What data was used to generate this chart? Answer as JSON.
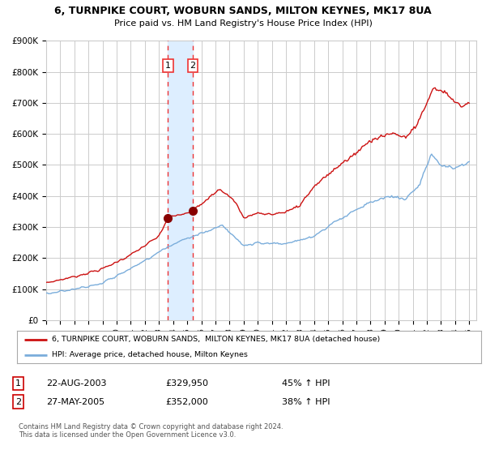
{
  "title": "6, TURNPIKE COURT, WOBURN SANDS, MILTON KEYNES, MK17 8UA",
  "subtitle": "Price paid vs. HM Land Registry's House Price Index (HPI)",
  "y_tick_labels": [
    "£0",
    "£100K",
    "£200K",
    "£300K",
    "£400K",
    "£500K",
    "£600K",
    "£700K",
    "£800K",
    "£900K"
  ],
  "y_ticks": [
    0,
    100000,
    200000,
    300000,
    400000,
    500000,
    600000,
    700000,
    800000,
    900000
  ],
  "hpi_color": "#7aaddb",
  "price_color": "#cc1111",
  "marker_color": "#880000",
  "vline_color": "#ee3333",
  "shade_color": "#ddeeff",
  "grid_color": "#cccccc",
  "sale1_year": 2003.64,
  "sale1_price": 329950,
  "sale2_year": 2005.4,
  "sale2_price": 352000,
  "legend_label_price": "6, TURNPIKE COURT, WOBURN SANDS,  MILTON KEYNES, MK17 8UA (detached house)",
  "legend_label_hpi": "HPI: Average price, detached house, Milton Keynes",
  "table_row1": [
    "1",
    "22-AUG-2003",
    "£329,950",
    "45% ↑ HPI"
  ],
  "table_row2": [
    "2",
    "27-MAY-2005",
    "£352,000",
    "38% ↑ HPI"
  ],
  "footnote": "Contains HM Land Registry data © Crown copyright and database right 2024.\nThis data is licensed under the Open Government Licence v3.0.",
  "background_color": "#ffffff"
}
